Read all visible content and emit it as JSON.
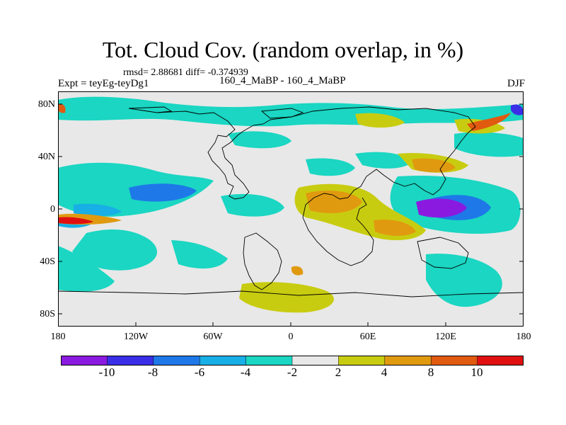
{
  "header": {
    "title": "Tot. Cloud Cov. (random overlap, in %)",
    "rmsd_line": "rmsd= 2.88681 diff= -0.374939",
    "experiment": "Expt = teyEg-teyDg1",
    "periods": "160_4_MaBP - 160_4_MaBP",
    "season": "DJF"
  },
  "axes": {
    "lat_labels": [
      "80N",
      "40N",
      "0",
      "40S",
      "80S"
    ],
    "lon_labels": [
      "180",
      "120W",
      "60W",
      "0",
      "60E",
      "120E",
      "180"
    ]
  },
  "colorbar": {
    "labels": [
      "-10",
      "-8",
      "-6",
      "-4",
      "-2",
      "2",
      "4",
      "8",
      "10"
    ],
    "colors": [
      "#8a1ae0",
      "#3a2ee6",
      "#1e78e8",
      "#18aee6",
      "#1ad6c2",
      "#e8e8e8",
      "#c8cc10",
      "#e09a10",
      "#e05a10",
      "#e01010"
    ]
  },
  "map": {
    "background": "#e8e8e8",
    "land_outline": "#000000",
    "anomaly_colors": {
      "strong_negative": "#8a1ae0",
      "negative": "#1e78e8",
      "weak_negative": "#1ad6c2",
      "weak_positive": "#c8cc10",
      "positive": "#e09a10",
      "strong_positive": "#e01010"
    }
  }
}
